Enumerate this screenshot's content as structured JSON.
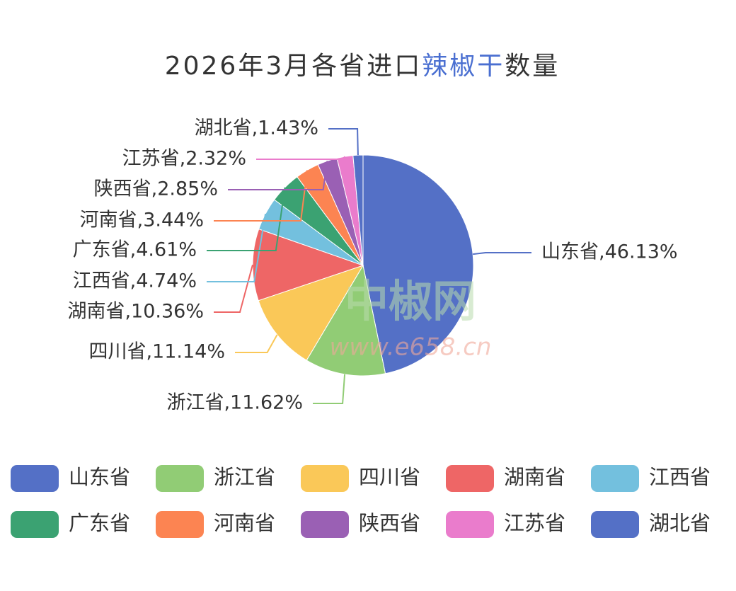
{
  "chart_data": {
    "type": "pie",
    "title": [
      "2026年3月各省进口",
      "辣椒干",
      "数量"
    ],
    "title_highlight_color": "#4a6fd1",
    "watermark": [
      "中椒网",
      "www.e658.cn"
    ],
    "categories": [
      "山东省",
      "浙江省",
      "四川省",
      "湖南省",
      "江西省",
      "广东省",
      "河南省",
      "陕西省",
      "江苏省",
      "湖北省"
    ],
    "values": [
      46.13,
      11.62,
      11.14,
      10.36,
      4.74,
      4.61,
      3.44,
      2.85,
      2.32,
      1.43
    ],
    "value_labels": [
      "山东省,46.13%",
      "浙江省,11.62%",
      "四川省,11.14%",
      "湖南省,10.36%",
      "江西省,4.74%",
      "广东省,4.61%",
      "河南省,3.44%",
      "陕西省,2.85%",
      "江苏省,2.32%",
      "湖北省,1.43%"
    ],
    "colors": [
      "#5470c6",
      "#91cc75",
      "#fac858",
      "#ee6666",
      "#73c0de",
      "#3ba272",
      "#fc8452",
      "#9a60b4",
      "#ea7ccc",
      "#5470c6"
    ]
  }
}
